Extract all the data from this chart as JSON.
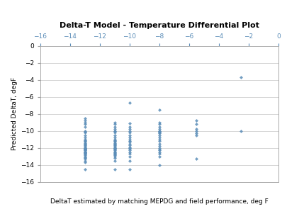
{
  "title": "Delta-T Model - Temperature Differential Plot",
  "xlabel": "DeltaT estimated by matching MEPDG and field performance, deg F",
  "ylabel": "Predicted DeltaT, degF",
  "xlim": [
    -16,
    0
  ],
  "ylim": [
    -16,
    0
  ],
  "xticks": [
    -16,
    -14,
    -12,
    -10,
    -8,
    -6,
    -4,
    -2,
    0
  ],
  "yticks": [
    0,
    -2,
    -4,
    -6,
    -8,
    -10,
    -12,
    -14,
    -16
  ],
  "marker_color": "#5B8DB8",
  "marker": "D",
  "marker_size": 2.5,
  "data": {
    "-13.0": [
      -8.5,
      -8.8,
      -9.0,
      -9.2,
      -9.5,
      -10.0,
      -10.1,
      -10.2,
      -10.5,
      -10.8,
      -11.0,
      -11.1,
      -11.2,
      -11.3,
      -11.4,
      -11.5,
      -11.6,
      -11.7,
      -11.8,
      -11.9,
      -12.0,
      -12.0,
      -12.1,
      -12.1,
      -12.2,
      -12.2,
      -12.3,
      -12.3,
      -12.4,
      -12.4,
      -12.5,
      -12.5,
      -12.6,
      -12.6,
      -12.7,
      -12.8,
      -12.9,
      -13.0,
      -13.1,
      -13.2,
      -13.3,
      -13.5,
      -13.7,
      -14.5
    ],
    "-11.0": [
      -9.0,
      -9.2,
      -9.5,
      -9.8,
      -10.0,
      -10.0,
      -10.2,
      -10.5,
      -10.8,
      -11.0,
      -11.1,
      -11.2,
      -11.3,
      -11.4,
      -11.5,
      -11.6,
      -11.7,
      -11.8,
      -11.9,
      -12.0,
      -12.0,
      -12.1,
      -12.2,
      -12.3,
      -12.4,
      -12.5,
      -12.6,
      -12.7,
      -12.8,
      -12.9,
      -13.0,
      -13.2,
      -13.5,
      -14.5
    ],
    "-10.0": [
      -6.7,
      -9.1,
      -9.5,
      -9.8,
      -10.0,
      -10.2,
      -10.5,
      -10.8,
      -11.0,
      -11.2,
      -11.3,
      -11.5,
      -11.7,
      -11.9,
      -12.0,
      -12.1,
      -12.3,
      -12.5,
      -12.7,
      -13.0,
      -13.5,
      -14.5
    ],
    "-8.0": [
      -7.5,
      -9.0,
      -9.2,
      -9.5,
      -9.8,
      -10.0,
      -10.0,
      -10.1,
      -10.2,
      -10.3,
      -10.5,
      -10.8,
      -11.0,
      -11.2,
      -11.5,
      -11.8,
      -12.0,
      -12.2,
      -12.3,
      -12.5,
      -12.7,
      -13.0,
      -14.0
    ],
    "-5.5": [
      -8.8,
      -9.2,
      -9.8,
      -10.0,
      -10.3,
      -10.5,
      -13.3
    ],
    "-2.5": [
      -3.7,
      -10.0
    ]
  }
}
